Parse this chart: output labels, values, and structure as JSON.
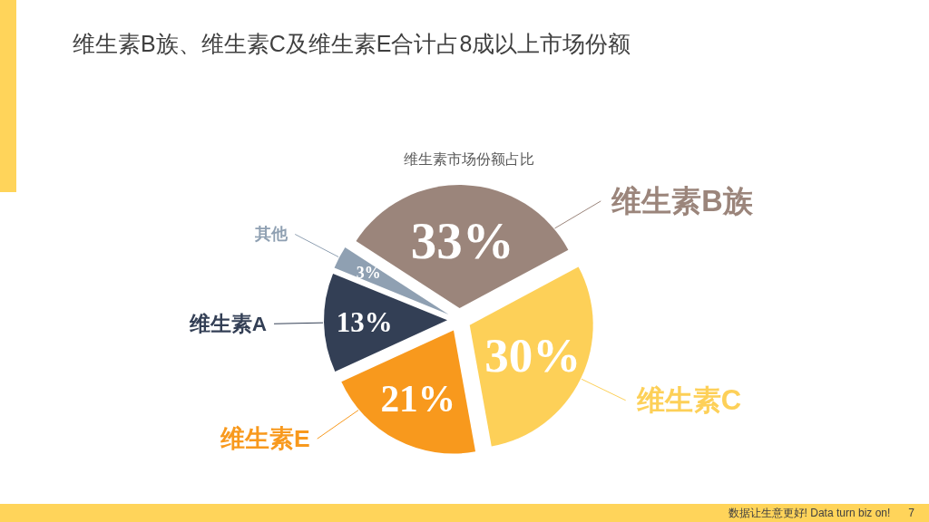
{
  "chart_data": {
    "type": "pie",
    "title": "维生素B族、维生素C及维生素E合计占8成以上市场份额",
    "subtitle": "维生素市场份额占比",
    "categories": [
      "维生素B族",
      "维生素C",
      "维生素E",
      "维生素A",
      "其他"
    ],
    "values": [
      33,
      30,
      21,
      13,
      3
    ],
    "colors": [
      "#9b857b",
      "#fdd058",
      "#f8991d",
      "#333f55",
      "#8fa0b2"
    ],
    "value_labels": [
      "33%",
      "30%",
      "21%",
      "13%",
      "3%"
    ],
    "annotations": [
      "数据让生意更好! Data turn biz on!",
      "7"
    ]
  }
}
